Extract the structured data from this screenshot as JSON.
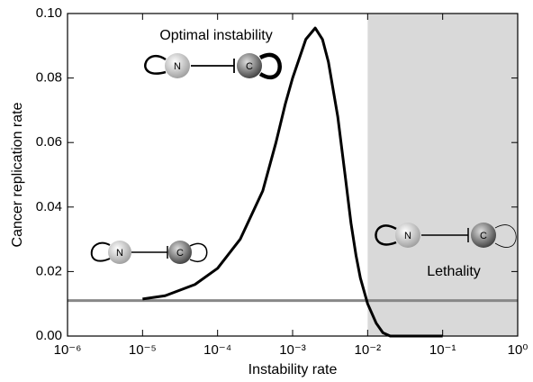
{
  "chart_data": {
    "type": "line",
    "x_label": "Instability rate",
    "y_label": "Cancer replication rate",
    "log_x": true,
    "x": [
      1e-05,
      2e-05,
      5e-05,
      0.0001,
      0.0002,
      0.0004,
      0.0006,
      0.0008,
      0.001,
      0.0015,
      0.002,
      0.0025,
      0.003,
      0.004,
      0.005,
      0.006,
      0.007,
      0.008,
      0.01,
      0.013,
      0.016,
      0.02,
      0.05,
      0.1
    ],
    "values": [
      0.0115,
      0.0125,
      0.016,
      0.021,
      0.03,
      0.045,
      0.06,
      0.072,
      0.08,
      0.092,
      0.0955,
      0.092,
      0.085,
      0.068,
      0.05,
      0.035,
      0.025,
      0.018,
      0.01,
      0.004,
      0.001,
      0,
      0,
      0
    ],
    "color": "#000000",
    "reference_line": {
      "value": 0.011,
      "color": "#888888"
    },
    "shaded_region": {
      "xlim": [
        0.01,
        1
      ],
      "color": "#d9d9d9"
    },
    "xlim": [
      1e-06,
      1
    ],
    "ylim": [
      0,
      0.1
    ],
    "xticks": [
      {
        "value": 1e-06,
        "label": "10⁻⁶"
      },
      {
        "value": 1e-05,
        "label": "10⁻⁵"
      },
      {
        "value": 0.0001,
        "label": "10⁻⁴"
      },
      {
        "value": 0.001,
        "label": "10⁻³"
      },
      {
        "value": 0.01,
        "label": "10⁻²"
      },
      {
        "value": 0.1,
        "label": "10⁻¹"
      },
      {
        "value": 1,
        "label": "10⁰"
      }
    ],
    "yticks": [
      {
        "value": 0,
        "label": "0.00"
      },
      {
        "value": 0.02,
        "label": "0.02"
      },
      {
        "value": 0.04,
        "label": "0.04"
      },
      {
        "value": 0.06,
        "label": "0.06"
      },
      {
        "value": 0.08,
        "label": "0.08"
      },
      {
        "value": 0.1,
        "label": "0.10"
      }
    ],
    "annotations": [
      "Optimal instability",
      "Lethality"
    ],
    "diagrams": [
      [
        "N",
        "C"
      ],
      [
        "N",
        "C"
      ],
      [
        "N",
        "C"
      ]
    ]
  }
}
